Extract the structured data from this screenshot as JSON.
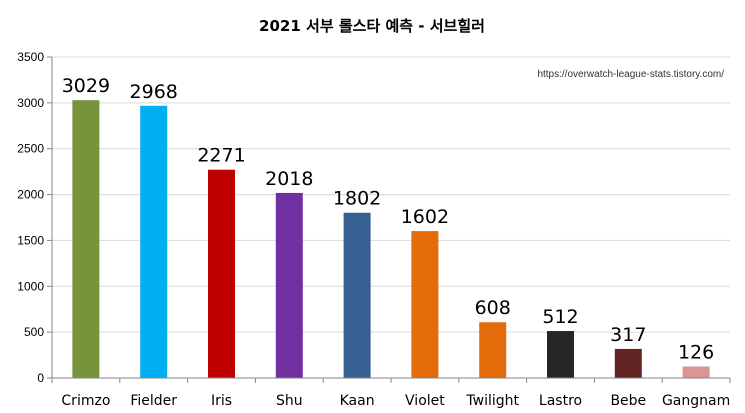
{
  "chart_data": {
    "type": "bar",
    "title": "2021 서부 롤스타 예측 - 서브힐러",
    "annotation": "https://overwatch-league-stats.tistory.com/",
    "categories": [
      "Crimzo",
      "Fielder",
      "Iris",
      "Shu",
      "Kaan",
      "Violet",
      "Twilight",
      "Lastro",
      "Bebe",
      "Gangnam"
    ],
    "values": [
      3029,
      2968,
      2271,
      2018,
      1802,
      1602,
      608,
      512,
      317,
      126
    ],
    "data_labels": [
      "3029",
      "2968",
      "2271",
      "2018",
      "1802",
      "1602",
      "608",
      "512",
      "317",
      "126"
    ],
    "colors": [
      "#77933c",
      "#00b0f0",
      "#c00000",
      "#7030a0",
      "#376092",
      "#e46c0a",
      "#e46c0a",
      "#262626",
      "#632523",
      "#d99694"
    ],
    "ylim": [
      0,
      3500
    ],
    "yticks": [
      "0",
      "500",
      "1000",
      "1500",
      "2000",
      "2500",
      "3000",
      "3500"
    ],
    "xlabel": "",
    "ylabel": "",
    "grid": true,
    "legend": "none"
  }
}
